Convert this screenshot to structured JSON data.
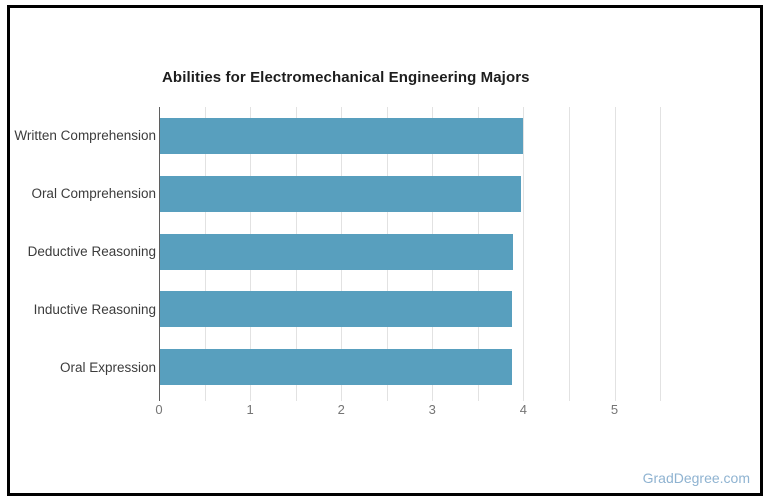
{
  "title": "Abilities for Electromechanical Engineering Majors",
  "watermark": "GradDegree.com",
  "colors": {
    "bar": "#589fbe",
    "gridline": "#e2e2e2",
    "axis_line": "#5f5f5f",
    "title_text": "#1d1d1d",
    "category_text": "#3c3c3c",
    "tick_text": "#757575",
    "watermark_text": "#8fb3d1",
    "frame_border": "#000000"
  },
  "chart_data": {
    "type": "bar",
    "orientation": "horizontal",
    "title": "Abilities for Electromechanical Engineering Majors",
    "categories": [
      "Written Comprehension",
      "Oral Comprehension",
      "Deductive Reasoning",
      "Inductive Reasoning",
      "Oral Expression"
    ],
    "values": [
      4.0,
      3.97,
      3.89,
      3.88,
      3.87
    ],
    "xlabel": "",
    "ylabel": "",
    "xlim": [
      0,
      5.5
    ],
    "x_tick_labels": [
      "0",
      "1",
      "2",
      "3",
      "4",
      "5"
    ],
    "x_tick_values": [
      0,
      1,
      2,
      3,
      4,
      5
    ],
    "grid": true,
    "grid_step": 0.5,
    "legend": false
  }
}
